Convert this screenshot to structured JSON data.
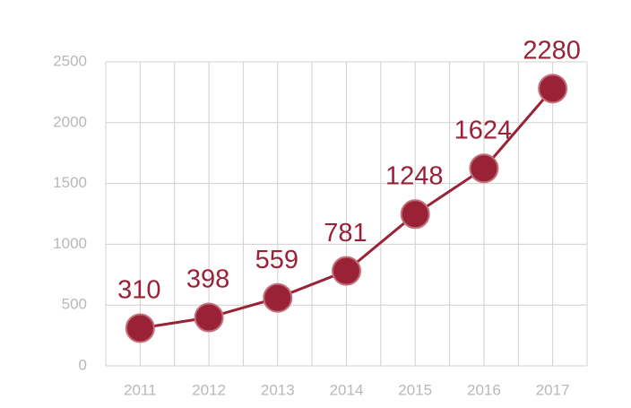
{
  "chart_data": {
    "type": "line",
    "categories": [
      "2011",
      "2012",
      "2013",
      "2014",
      "2015",
      "2016",
      "2017"
    ],
    "values": [
      310,
      398,
      559,
      781,
      1248,
      1624,
      2280
    ],
    "color": "#9a2236",
    "ylim": [
      0,
      2500
    ],
    "yticks": [
      0,
      500,
      1000,
      1500,
      2000,
      2500
    ],
    "grid": true
  }
}
